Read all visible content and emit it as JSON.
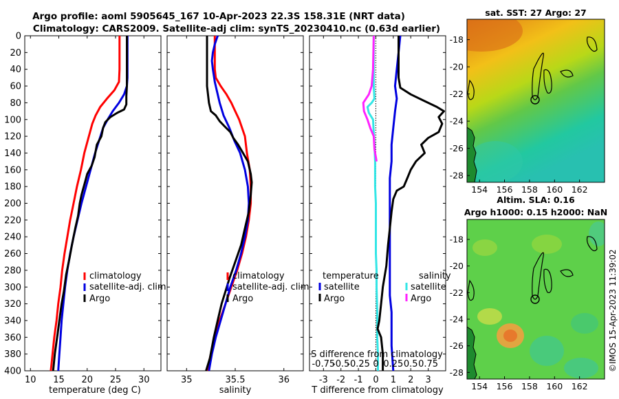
{
  "header": {
    "title_line1": "Argo profile: aoml 5905645_167 10-Apr-2023 22.3S 158.31E (NRT data)",
    "title_line2": "Climatology: CARS2009. Satellite-adj clim: synTS_20230410.nc (0.63d earlier)"
  },
  "colors": {
    "climatology": "#ff0000",
    "satellite_adj": "#0000e0",
    "argo": "#000000",
    "sat_salinity": "#33e6e6",
    "argo_salinity": "#ff22ff"
  },
  "depth_axis": {
    "ticks": [
      "0",
      "20",
      "40",
      "60",
      "80",
      "100",
      "120",
      "140",
      "160",
      "180",
      "200",
      "220",
      "240",
      "260",
      "280",
      "300",
      "320",
      "340",
      "360",
      "380",
      "400"
    ],
    "range": [
      0,
      400
    ]
  },
  "chart_data": [
    {
      "type": "line",
      "name": "temperature",
      "xlabel": "temperature (deg C)",
      "xlim": [
        9,
        33
      ],
      "xticks": [
        "10",
        "15",
        "20",
        "25",
        "30"
      ],
      "ylim": [
        400,
        0
      ],
      "legend": {
        "placement": "lower-middle",
        "entries": [
          "climatology",
          "satellite-adj. clim",
          "Argo"
        ]
      },
      "series": [
        {
          "name": "climatology",
          "points": [
            [
              25.7,
              0
            ],
            [
              25.7,
              40
            ],
            [
              25.6,
              55
            ],
            [
              24.8,
              65
            ],
            [
              23.5,
              75
            ],
            [
              22.3,
              85
            ],
            [
              21.5,
              95
            ],
            [
              20.9,
              105
            ],
            [
              20.3,
              120
            ],
            [
              19.5,
              140
            ],
            [
              18.9,
              160
            ],
            [
              18.2,
              180
            ],
            [
              17.6,
              200
            ],
            [
              17.0,
              220
            ],
            [
              16.5,
              240
            ],
            [
              16.0,
              260
            ],
            [
              15.6,
              280
            ],
            [
              15.3,
              300
            ],
            [
              14.9,
              320
            ],
            [
              14.6,
              340
            ],
            [
              14.2,
              360
            ],
            [
              13.9,
              380
            ],
            [
              13.6,
              400
            ]
          ]
        },
        {
          "name": "satellite-adj. clim",
          "points": [
            [
              27.1,
              0
            ],
            [
              27.1,
              50
            ],
            [
              27.0,
              60
            ],
            [
              26.5,
              70
            ],
            [
              25.6,
              80
            ],
            [
              24.5,
              90
            ],
            [
              23.6,
              100
            ],
            [
              22.8,
              110
            ],
            [
              22.1,
              125
            ],
            [
              21.4,
              140
            ],
            [
              20.6,
              160
            ],
            [
              19.8,
              180
            ],
            [
              19.0,
              200
            ],
            [
              18.3,
              220
            ],
            [
              17.6,
              240
            ],
            [
              17.0,
              260
            ],
            [
              16.5,
              280
            ],
            [
              16.1,
              300
            ],
            [
              15.8,
              320
            ],
            [
              15.5,
              340
            ],
            [
              15.3,
              360
            ],
            [
              15.1,
              380
            ],
            [
              14.9,
              400
            ]
          ]
        },
        {
          "name": "Argo",
          "points": [
            [
              27.0,
              0
            ],
            [
              27.0,
              60
            ],
            [
              26.9,
              72
            ],
            [
              26.9,
              82
            ],
            [
              26.5,
              88
            ],
            [
              25.3,
              92
            ],
            [
              24.1,
              97
            ],
            [
              23.2,
              103
            ],
            [
              22.8,
              110
            ],
            [
              22.5,
              120
            ],
            [
              21.7,
              130
            ],
            [
              21.3,
              145
            ],
            [
              20.8,
              155
            ],
            [
              20.0,
              165
            ],
            [
              19.6,
              175
            ],
            [
              19.0,
              190
            ],
            [
              18.7,
              200
            ],
            [
              18.4,
              215
            ],
            [
              17.9,
              230
            ],
            [
              17.3,
              250
            ],
            [
              16.9,
              265
            ],
            [
              16.3,
              285
            ],
            [
              15.9,
              305
            ],
            [
              15.5,
              320
            ],
            [
              15.2,
              335
            ],
            [
              14.8,
              355
            ],
            [
              14.3,
              380
            ],
            [
              14.0,
              400
            ]
          ]
        }
      ]
    },
    {
      "type": "line",
      "name": "salinity",
      "xlabel": "salinity",
      "xlim": [
        34.8,
        36.2
      ],
      "xticks": [
        "35",
        "35.5",
        "36"
      ],
      "ylim": [
        400,
        0
      ],
      "legend": {
        "placement": "lower-middle",
        "entries": [
          "climatology",
          "satellite-adj. clim",
          "Argo"
        ]
      },
      "series": [
        {
          "name": "climatology",
          "points": [
            [
              35.29,
              0
            ],
            [
              35.29,
              40
            ],
            [
              35.3,
              50
            ],
            [
              35.35,
              60
            ],
            [
              35.41,
              70
            ],
            [
              35.46,
              80
            ],
            [
              35.5,
              90
            ],
            [
              35.54,
              100
            ],
            [
              35.57,
              110
            ],
            [
              35.6,
              120
            ],
            [
              35.62,
              140
            ],
            [
              35.65,
              160
            ],
            [
              35.66,
              180
            ],
            [
              35.66,
              200
            ],
            [
              35.64,
              220
            ],
            [
              35.61,
              240
            ],
            [
              35.57,
              260
            ],
            [
              35.52,
              280
            ],
            [
              35.46,
              300
            ],
            [
              35.4,
              320
            ],
            [
              35.34,
              340
            ],
            [
              35.29,
              360
            ],
            [
              35.25,
              380
            ],
            [
              35.21,
              400
            ]
          ]
        },
        {
          "name": "satellite-adj. clim",
          "points": [
            [
              35.32,
              0
            ],
            [
              35.29,
              10
            ],
            [
              35.27,
              20
            ],
            [
              35.26,
              30
            ],
            [
              35.27,
              40
            ],
            [
              35.29,
              55
            ],
            [
              35.31,
              65
            ],
            [
              35.34,
              80
            ],
            [
              35.38,
              95
            ],
            [
              35.44,
              110
            ],
            [
              35.49,
              125
            ],
            [
              35.55,
              140
            ],
            [
              35.6,
              160
            ],
            [
              35.63,
              180
            ],
            [
              35.64,
              200
            ],
            [
              35.63,
              220
            ],
            [
              35.6,
              240
            ],
            [
              35.56,
              260
            ],
            [
              35.51,
              280
            ],
            [
              35.45,
              300
            ],
            [
              35.4,
              320
            ],
            [
              35.35,
              340
            ],
            [
              35.3,
              360
            ],
            [
              35.26,
              380
            ],
            [
              35.23,
              400
            ]
          ]
        },
        {
          "name": "Argo",
          "points": [
            [
              35.21,
              0
            ],
            [
              35.21,
              30
            ],
            [
              35.21,
              60
            ],
            [
              35.23,
              80
            ],
            [
              35.25,
              90
            ],
            [
              35.3,
              95
            ],
            [
              35.34,
              102
            ],
            [
              35.39,
              108
            ],
            [
              35.45,
              115
            ],
            [
              35.48,
              122
            ],
            [
              35.53,
              130
            ],
            [
              35.58,
              140
            ],
            [
              35.63,
              150
            ],
            [
              35.66,
              165
            ],
            [
              35.67,
              175
            ],
            [
              35.66,
              190
            ],
            [
              35.64,
              210
            ],
            [
              35.6,
              230
            ],
            [
              35.56,
              250
            ],
            [
              35.5,
              270
            ],
            [
              35.44,
              290
            ],
            [
              35.4,
              305
            ],
            [
              35.36,
              320
            ],
            [
              35.32,
              340
            ],
            [
              35.28,
              360
            ],
            [
              35.24,
              385
            ],
            [
              35.2,
              400
            ]
          ]
        }
      ]
    },
    {
      "type": "line",
      "name": "difference",
      "xlabel": "T difference from climatology",
      "xlabel_top": "S difference from climatology",
      "xlim": [
        -3.8,
        4.0
      ],
      "xticks": [
        "-3",
        "-2",
        "-1",
        "0",
        "1",
        "2",
        "3"
      ],
      "sticks": [
        "-0.75",
        "-0.5",
        "-0.25",
        "0",
        "0.25",
        "0.5",
        "0.75"
      ],
      "ylim": [
        400,
        0
      ],
      "legend": {
        "placement": "lower",
        "temperature_title": "temperature",
        "salinity_title": "salinity",
        "entries_t": [
          "satellite",
          "Argo"
        ],
        "entries_s": [
          "satellite",
          "Argo"
        ]
      },
      "series": [
        {
          "name": "T satellite",
          "points": [
            [
              1.4,
              0
            ],
            [
              1.3,
              20
            ],
            [
              1.2,
              40
            ],
            [
              1.1,
              60
            ],
            [
              1.2,
              75
            ],
            [
              1.1,
              90
            ],
            [
              1.0,
              110
            ],
            [
              0.9,
              130
            ],
            [
              0.9,
              150
            ],
            [
              0.8,
              170
            ],
            [
              0.8,
              190
            ],
            [
              0.8,
              210
            ],
            [
              0.8,
              230
            ],
            [
              0.8,
              250
            ],
            [
              0.8,
              270
            ],
            [
              0.8,
              290
            ],
            [
              0.8,
              310
            ],
            [
              0.9,
              330
            ],
            [
              0.9,
              350
            ],
            [
              0.9,
              370
            ],
            [
              1.0,
              400
            ]
          ]
        },
        {
          "name": "T Argo",
          "points": [
            [
              1.3,
              0
            ],
            [
              1.3,
              50
            ],
            [
              1.4,
              62
            ],
            [
              2.0,
              70
            ],
            [
              2.8,
              78
            ],
            [
              3.5,
              85
            ],
            [
              3.9,
              90
            ],
            [
              3.6,
              97
            ],
            [
              3.8,
              105
            ],
            [
              3.6,
              115
            ],
            [
              3.0,
              122
            ],
            [
              2.6,
              130
            ],
            [
              2.8,
              140
            ],
            [
              2.3,
              150
            ],
            [
              2.0,
              160
            ],
            [
              1.8,
              170
            ],
            [
              1.6,
              180
            ],
            [
              1.2,
              185
            ],
            [
              1.0,
              195
            ],
            [
              0.9,
              210
            ],
            [
              0.8,
              230
            ],
            [
              0.7,
              250
            ],
            [
              0.6,
              275
            ],
            [
              0.4,
              300
            ],
            [
              0.3,
              320
            ],
            [
              0.2,
              340
            ],
            [
              0.1,
              350
            ],
            [
              0.3,
              360
            ],
            [
              0.4,
              380
            ],
            [
              0.4,
              400
            ]
          ]
        },
        {
          "name": "S satellite",
          "points": [
            [
              -0.03,
              0
            ],
            [
              -0.03,
              40
            ],
            [
              -0.03,
              60
            ],
            [
              -0.02,
              75
            ],
            [
              -0.06,
              80
            ],
            [
              -0.12,
              85
            ],
            [
              -0.1,
              92
            ],
            [
              -0.04,
              100
            ],
            [
              -0.02,
              130
            ],
            [
              -0.01,
              150
            ],
            [
              -0.01,
              180
            ],
            [
              0,
              200
            ],
            [
              0,
              230
            ],
            [
              0,
              260
            ],
            [
              0.01,
              280
            ],
            [
              0.01,
              300
            ],
            [
              0.02,
              330
            ],
            [
              0.02,
              360
            ],
            [
              0.03,
              380
            ],
            [
              0.03,
              400
            ]
          ]
        },
        {
          "name": "S Argo",
          "points": [
            [
              -0.03,
              0
            ],
            [
              -0.04,
              40
            ],
            [
              -0.06,
              60
            ],
            [
              -0.1,
              70
            ],
            [
              -0.18,
              80
            ],
            [
              -0.17,
              90
            ],
            [
              -0.12,
              100
            ],
            [
              -0.08,
              110
            ],
            [
              -0.03,
              120
            ],
            [
              -0.02,
              135
            ],
            [
              0,
              145
            ],
            [
              0.01,
              150
            ]
          ]
        }
      ]
    }
  ],
  "maps": [
    {
      "title": "sat. SST: 27 Argo: 27",
      "lon_ticks": [
        "154",
        "156",
        "158",
        "160",
        "162"
      ],
      "lat_ticks": [
        "-18",
        "-20",
        "-22",
        "-24",
        "-26",
        "-28"
      ],
      "lon_range": [
        153,
        164
      ],
      "lat_range": [
        -28.5,
        -16.5
      ],
      "argo_marker": {
        "lon": 158.31,
        "lat": -22.3
      }
    },
    {
      "title_line1": "Altim. SLA: 0.16",
      "title_line2": "Argo h1000: 0.15 h2000: NaN",
      "lon_ticks": [
        "154",
        "156",
        "158",
        "160",
        "162"
      ],
      "lat_ticks": [
        "-18",
        "-20",
        "-22",
        "-24",
        "-26",
        "-28"
      ],
      "lon_range": [
        153,
        164
      ],
      "lat_range": [
        -28.5,
        -16.5
      ],
      "argo_marker": {
        "lon": 158.31,
        "lat": -22.3
      }
    }
  ],
  "credit": "©IMOS 15-Apr-2023 11:39:02"
}
